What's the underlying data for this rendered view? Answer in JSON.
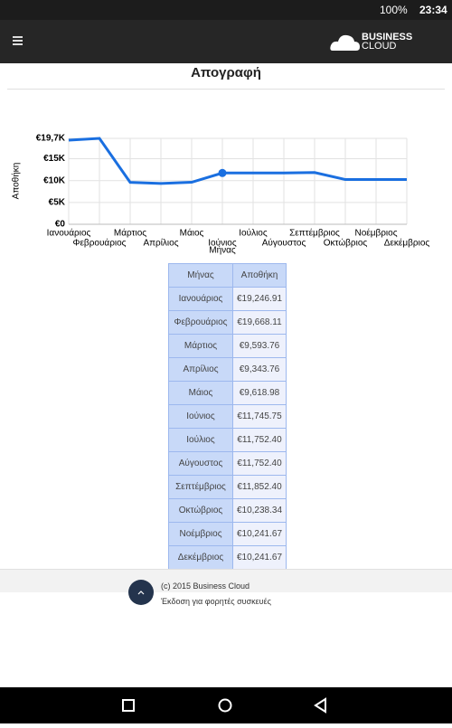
{
  "status_bar": {
    "battery": "100%",
    "time": "23:34"
  },
  "app_bar": {
    "logo_line1": "BUSINESS",
    "logo_line2": "CLOUD"
  },
  "page_title": "Απογραφή",
  "chart_data": {
    "type": "line",
    "y_label": "Αποθήκη",
    "x_label": "Μήνας",
    "categories": [
      "Ιανουάριος",
      "Φεβρουάριος",
      "Μάρτιος",
      "Απρίλιος",
      "Μάιος",
      "Ιούνιος",
      "Ιούλιος",
      "Αύγουστος",
      "Σεπτέμβριος",
      "Οκτώβριος",
      "Νοέμβριος",
      "Δεκέμβριος"
    ],
    "series": [
      {
        "name": "Αποθήκη",
        "color": "#1a6fe0",
        "values": [
          19246.91,
          19668.11,
          9593.76,
          9343.76,
          9618.98,
          11745.75,
          11752.4,
          11752.4,
          11852.4,
          10238.34,
          10241.67,
          10241.67
        ]
      }
    ],
    "highlight": 5,
    "ylim": [
      0,
      19668.11
    ],
    "yticks": [
      {
        "value": 0,
        "label": "€0"
      },
      {
        "value": 5000,
        "label": "€5K"
      },
      {
        "value": 10000,
        "label": "€10K"
      },
      {
        "value": 15000,
        "label": "€15K"
      },
      {
        "value": 19668.11,
        "label": "€19,7K"
      }
    ],
    "grid": true
  },
  "table": {
    "header": [
      "Μήνας",
      "Αποθήκη"
    ],
    "rows": [
      [
        "Ιανουάριος",
        "€19,246.91"
      ],
      [
        "Φεβρουάριος",
        "€19,668.11"
      ],
      [
        "Μάρτιος",
        "€9,593.76"
      ],
      [
        "Απρίλιος",
        "€9,343.76"
      ],
      [
        "Μάιος",
        "€9,618.98"
      ],
      [
        "Ιούνιος",
        "€11,745.75"
      ],
      [
        "Ιούλιος",
        "€11,752.40"
      ],
      [
        "Αύγουστος",
        "€11,752.40"
      ],
      [
        "Σεπτέμβριος",
        "€11,852.40"
      ],
      [
        "Οκτώβριος",
        "€10,238.34"
      ],
      [
        "Νοέμβριος",
        "€10,241.67"
      ],
      [
        "Δεκέμβριος",
        "€10,241.67"
      ]
    ]
  },
  "footer": {
    "copyright": "(c) 2015 Business Cloud",
    "edition": "Έκδοση για φορητές συσκευές"
  }
}
